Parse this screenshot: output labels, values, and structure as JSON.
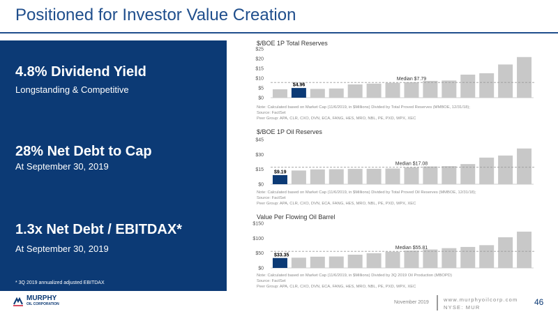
{
  "slide": {
    "title": "Positioned for Investor Value Creation"
  },
  "metrics": [
    {
      "value": "4.8% Dividend Yield",
      "subtitle": "Longstanding & Competitive"
    },
    {
      "value": "28% Net Debt to Cap",
      "subtitle": "At September 30, 2019"
    },
    {
      "value": "1.3x Net Debt / EBITDAX*",
      "subtitle": "At September 30, 2019"
    }
  ],
  "footnote": "* 3Q 2019 annualized adjusted EBITDAX",
  "footer": {
    "logo_line1": "MURPHY",
    "logo_line2": "OIL CORPORATION",
    "date": "November 2019",
    "website": "www.murphyoilcorp.com",
    "ticker": "NYSE: MUR",
    "page": "46"
  },
  "colors": {
    "panel": "#0c3a75",
    "highlight_bar": "#0c3a75",
    "peer_bar": "#c8c8c8",
    "median_line": "#9a9a9a"
  },
  "chart_data": [
    {
      "type": "bar",
      "title": "$/BOE 1P Total Reserves",
      "ylim": [
        0,
        25
      ],
      "yticks": [
        "$0",
        "$5",
        "$10",
        "$15",
        "$20",
        "$25"
      ],
      "tick_values": [
        0,
        5,
        10,
        15,
        20,
        25
      ],
      "values": [
        4.3,
        4.96,
        4.5,
        4.7,
        6.8,
        7.2,
        7.6,
        7.9,
        8.6,
        8.8,
        11.8,
        12.5,
        17.0,
        20.8
      ],
      "highlight_index": 1,
      "highlight_label": "$4.96",
      "median": 7.79,
      "median_label": "Median $7.79",
      "grid": false,
      "notes": [
        "Note: Calculated based on Market Cap (11/6/2019, in $Millions) Divided by Total Proved Reserves (MMBOE, 12/31/18);",
        "Source: FactSet",
        "Peer Group: APA, CLR, CXO, DVN, ECA, FANG, HES, MRO, NBL, PE, PXD, WPX, XEC"
      ]
    },
    {
      "type": "bar",
      "title": "$/BOE 1P Oil Reserves",
      "ylim": [
        0,
        45
      ],
      "yticks": [
        "$0",
        "$15",
        "$30",
        "$45"
      ],
      "tick_values": [
        0,
        15,
        30,
        45
      ],
      "values": [
        9.19,
        13.8,
        14.9,
        15.1,
        15.4,
        15.5,
        15.8,
        16.9,
        17.9,
        18.2,
        20.3,
        26.8,
        28.9,
        36.0
      ],
      "highlight_index": 0,
      "highlight_label": "$9.19",
      "median": 17.08,
      "median_label": "Median $17.08",
      "grid": false,
      "notes": [
        "Note: Calculated based on Market Cap (11/6/2019, in $Millions) Divided by Total Proved Oil Reserves (MMBOE, 12/31/18);",
        "Source: FactSet",
        "Peer Group: APA, CLR, CXO, DVN, ECA, FANG, HES, MRO, NBL, PE, PXD, WPX, XEC"
      ]
    },
    {
      "type": "bar",
      "title": "Value Per Flowing Oil Barrel",
      "ylim": [
        0,
        150
      ],
      "yticks": [
        "$0",
        "$50",
        "$100",
        "$150"
      ],
      "tick_values": [
        0,
        50,
        100,
        150
      ],
      "values": [
        33.35,
        34.5,
        37.8,
        38.5,
        44.5,
        49.5,
        54.5,
        58.5,
        62.0,
        66.5,
        70.5,
        76.5,
        103.0,
        122.0
      ],
      "highlight_index": 0,
      "highlight_label": "$33.35",
      "median": 55.81,
      "median_label": "Median $55.81",
      "grid": false,
      "notes": [
        "Note: Calculated based on Market Cap (11/6/2019, in $Millions) Divided by 3Q 2019 Oil Production (MBOPD)",
        "Source: FactSet",
        "Peer Group: APA, CLR, CXO, DVN, ECA, FANG, HES, MRO, NBL, PE, PXD, WPX, XEC"
      ]
    }
  ]
}
